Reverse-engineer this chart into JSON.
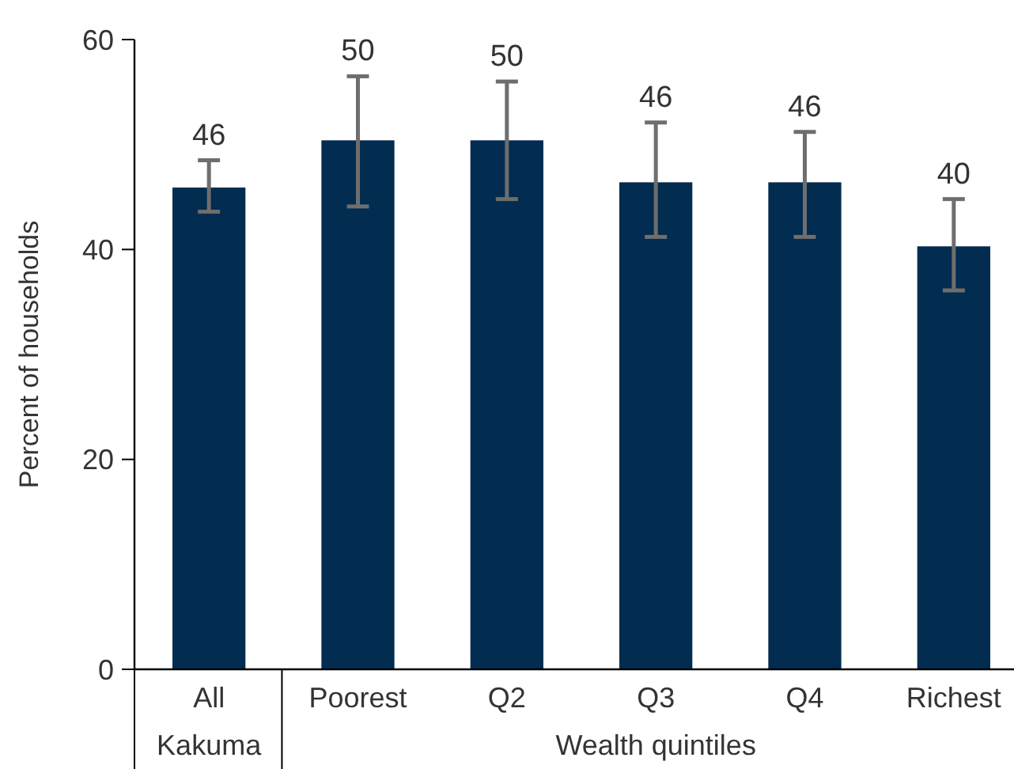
{
  "chart_data": {
    "type": "bar",
    "ylabel": "Percent of households",
    "categories": [
      "All",
      "Poorest",
      "Q2",
      "Q3",
      "Q4",
      "Richest"
    ],
    "values": [
      45.9,
      50.4,
      50.4,
      46.4,
      46.4,
      40.3
    ],
    "errors": [
      [
        43.6,
        48.5
      ],
      [
        44.1,
        56.5
      ],
      [
        44.8,
        56.0
      ],
      [
        41.2,
        52.1
      ],
      [
        41.2,
        51.2
      ],
      [
        36.1,
        44.8
      ]
    ],
    "value_labels": [
      "46",
      "50",
      "50",
      "46",
      "46",
      "40"
    ],
    "color": "#022c50",
    "ylim": [
      0,
      60
    ],
    "yticks": [
      0,
      20,
      40,
      60
    ],
    "grid": false,
    "annotations": [
      "Kakuma",
      "Wealth quintiles"
    ]
  }
}
